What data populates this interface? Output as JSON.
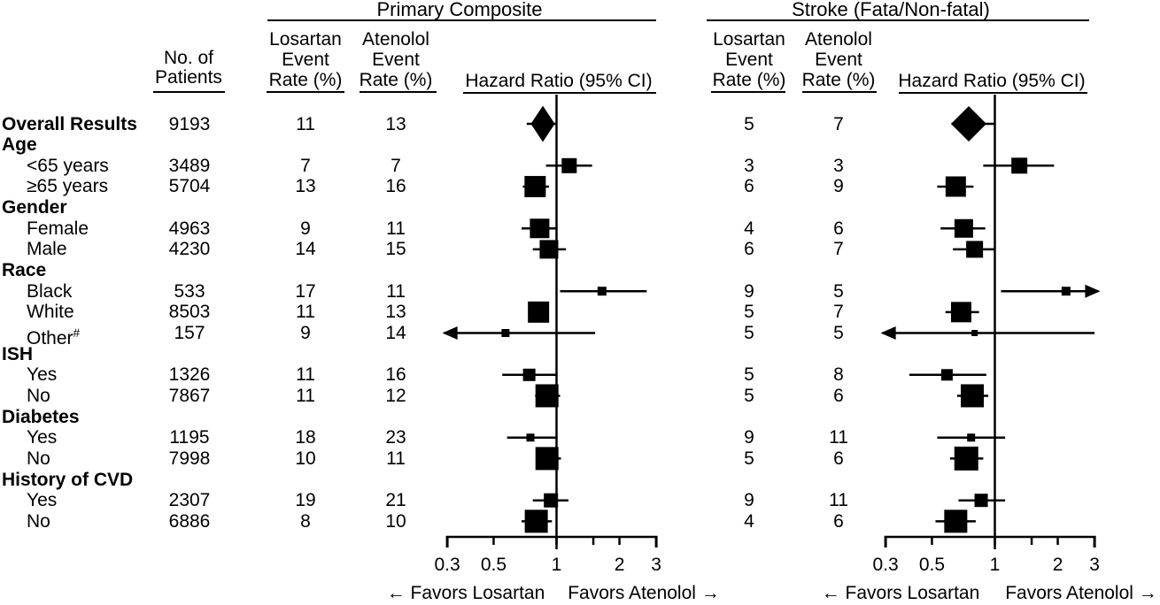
{
  "chart_data": {
    "type": "forest",
    "x_scale": "log",
    "x_range": [
      0.3,
      3
    ],
    "reference_line": 1,
    "x_ticks_labeled": [
      0.3,
      0.5,
      1,
      2,
      3
    ],
    "tick_labels": [
      "0.3",
      "0.5",
      "1",
      "2",
      "3"
    ],
    "x_ticks_minor": [
      1.5
    ],
    "favors_left": "← Favors Losartan",
    "favors_right": "Favors Atenolol →",
    "headers": {
      "patients": "No. of\nPatients",
      "losartan": "Losartan\nEvent\nRate (%)",
      "atenolol": "Atenolol\nEvent\nRate (%)"
    },
    "panels": [
      {
        "id": "primary",
        "title": "Primary Composite",
        "axis_label": "Hazard Ratio (95% CI)"
      },
      {
        "id": "stroke",
        "title": "Stroke (Fata/Non-fatal)",
        "axis_label": "Hazard Ratio (95% CI)"
      }
    ],
    "rows": [
      {
        "label": "Overall Results",
        "bold": true,
        "patients": "9193",
        "primary": {
          "losartan_rate": "11",
          "atenolol_rate": "13",
          "hr": 0.86,
          "ci": [
            0.72,
            1.0
          ],
          "marker": "diamond",
          "diamond_w": 27,
          "diamond_h": 41
        },
        "stroke": {
          "losartan_rate": "5",
          "atenolol_rate": "7",
          "hr": 0.75,
          "ci": [
            0.62,
            1.0
          ],
          "marker": "diamond",
          "diamond_w": 40,
          "diamond_h": 40
        }
      },
      {
        "label": "Age",
        "group": true
      },
      {
        "label": "<65 years",
        "patients": "3489",
        "primary": {
          "losartan_rate": "7",
          "atenolol_rate": "7",
          "hr": 1.15,
          "ci": [
            0.89,
            1.48
          ],
          "size": 17
        },
        "stroke": {
          "losartan_rate": "3",
          "atenolol_rate": "3",
          "hr": 1.31,
          "ci": [
            0.88,
            1.92
          ],
          "size": 18
        }
      },
      {
        "label": "≥65 years",
        "patients": "5704",
        "primary": {
          "losartan_rate": "13",
          "atenolol_rate": "16",
          "hr": 0.79,
          "ci": [
            0.69,
            0.92
          ],
          "size": 24
        },
        "stroke": {
          "losartan_rate": "6",
          "atenolol_rate": "9",
          "hr": 0.65,
          "ci": [
            0.53,
            0.79
          ],
          "size": 23
        }
      },
      {
        "label": "Gender",
        "group": true
      },
      {
        "label": "Female",
        "patients": "4963",
        "primary": {
          "losartan_rate": "9",
          "atenolol_rate": "11",
          "hr": 0.83,
          "ci": [
            0.68,
            1.0
          ],
          "size": 22
        },
        "stroke": {
          "losartan_rate": "4",
          "atenolol_rate": "6",
          "hr": 0.71,
          "ci": [
            0.55,
            0.9
          ],
          "size": 21
        }
      },
      {
        "label": "Male",
        "patients": "4230",
        "primary": {
          "losartan_rate": "14",
          "atenolol_rate": "15",
          "hr": 0.92,
          "ci": [
            0.77,
            1.11
          ],
          "size": 21
        },
        "stroke": {
          "losartan_rate": "6",
          "atenolol_rate": "7",
          "hr": 0.8,
          "ci": [
            0.63,
            1.0
          ],
          "size": 19
        }
      },
      {
        "label": "Race",
        "group": true
      },
      {
        "label": "Black",
        "patients": "533",
        "primary": {
          "losartan_rate": "17",
          "atenolol_rate": "11",
          "hr": 1.65,
          "ci": [
            1.04,
            2.7
          ],
          "size": 10
        },
        "stroke": {
          "losartan_rate": "9",
          "atenolol_rate": "5",
          "hr": 2.19,
          "ci": [
            1.07,
            3.13
          ],
          "size": 10,
          "arrow_hi": true
        }
      },
      {
        "label": "White",
        "patients": "8503",
        "primary": {
          "losartan_rate": "11",
          "atenolol_rate": "13",
          "hr": 0.82,
          "ci": [
            0.73,
            0.92
          ],
          "size": 24
        },
        "stroke": {
          "losartan_rate": "5",
          "atenolol_rate": "7",
          "hr": 0.69,
          "ci": [
            0.58,
            0.84
          ],
          "size": 23
        }
      },
      {
        "label": "Other",
        "sup": "#",
        "patients": "157",
        "primary": {
          "losartan_rate": "9",
          "atenolol_rate": "14",
          "hr": 0.57,
          "ci": [
            0.29,
            1.53
          ],
          "size": 9,
          "arrow_lo": true
        },
        "stroke": {
          "losartan_rate": "5",
          "atenolol_rate": "5",
          "hr": 0.8,
          "ci": [
            0.29,
            3.0
          ],
          "size": 7,
          "arrow_lo": true
        }
      },
      {
        "label": "ISH",
        "group": true
      },
      {
        "label": "Yes",
        "patients": "1326",
        "primary": {
          "losartan_rate": "11",
          "atenolol_rate": "16",
          "hr": 0.74,
          "ci": [
            0.55,
            1.0
          ],
          "size": 14
        },
        "stroke": {
          "losartan_rate": "5",
          "atenolol_rate": "8",
          "hr": 0.59,
          "ci": [
            0.39,
            0.91
          ],
          "size": 13
        }
      },
      {
        "label": "No",
        "patients": "7867",
        "primary": {
          "losartan_rate": "11",
          "atenolol_rate": "12",
          "hr": 0.9,
          "ci": [
            0.79,
            1.04
          ],
          "size": 26
        },
        "stroke": {
          "losartan_rate": "5",
          "atenolol_rate": "6",
          "hr": 0.78,
          "ci": [
            0.66,
            0.93
          ],
          "size": 26
        }
      },
      {
        "label": "Diabetes",
        "group": true
      },
      {
        "label": "Yes",
        "patients": "1195",
        "primary": {
          "losartan_rate": "18",
          "atenolol_rate": "23",
          "hr": 0.75,
          "ci": [
            0.58,
            1.0
          ],
          "size": 9
        },
        "stroke": {
          "losartan_rate": "9",
          "atenolol_rate": "11",
          "hr": 0.77,
          "ci": [
            0.53,
            1.12
          ],
          "size": 9
        }
      },
      {
        "label": "No",
        "patients": "7998",
        "primary": {
          "losartan_rate": "10",
          "atenolol_rate": "11",
          "hr": 0.9,
          "ci": [
            0.8,
            1.05
          ],
          "size": 26
        },
        "stroke": {
          "losartan_rate": "5",
          "atenolol_rate": "6",
          "hr": 0.73,
          "ci": [
            0.61,
            0.88
          ],
          "size": 27
        }
      },
      {
        "label": "History of CVD",
        "group": true
      },
      {
        "label": "Yes",
        "patients": "2307",
        "primary": {
          "losartan_rate": "19",
          "atenolol_rate": "21",
          "hr": 0.94,
          "ci": [
            0.77,
            1.14
          ],
          "size": 16
        },
        "stroke": {
          "losartan_rate": "9",
          "atenolol_rate": "11",
          "hr": 0.86,
          "ci": [
            0.67,
            1.12
          ],
          "size": 15
        }
      },
      {
        "label": "No",
        "patients": "6886",
        "primary": {
          "losartan_rate": "8",
          "atenolol_rate": "10",
          "hr": 0.8,
          "ci": [
            0.68,
            0.95
          ],
          "size": 26
        },
        "stroke": {
          "losartan_rate": "4",
          "atenolol_rate": "6",
          "hr": 0.65,
          "ci": [
            0.52,
            0.81
          ],
          "size": 26
        }
      }
    ]
  }
}
